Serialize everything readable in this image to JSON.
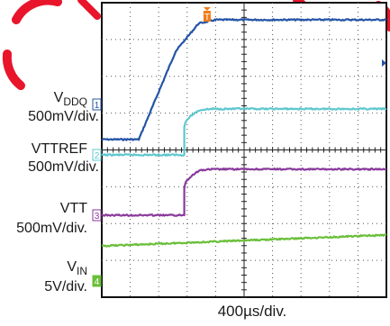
{
  "colors": {
    "ch1": "#2554a6",
    "ch2": "#5fc7cf",
    "ch3": "#8a3a9c",
    "ch4": "#6abf3a",
    "trigger": "#f07c1a",
    "grid": "#555555",
    "frame": "#111111"
  },
  "chart_data": {
    "type": "line",
    "timebase": "400µs/div.",
    "trigger_marker": "T",
    "channels": [
      {
        "id": "1",
        "name_main": "V",
        "name_sub": "DDQ",
        "scale": "500mV/div.",
        "color": "#2554a6",
        "x_div": [
          0,
          1.3,
          2.6,
          3.4,
          4.0,
          10
        ],
        "y_div": [
          -0.95,
          -0.95,
          1.45,
          2.2,
          2.3,
          2.3
        ]
      },
      {
        "id": "2",
        "name_main": "VTTREF",
        "name_sub": "",
        "scale": "500mV/div.",
        "color": "#5fc7cf",
        "x_div": [
          0,
          2.9,
          2.9,
          3.4,
          3.9,
          10
        ],
        "y_div": [
          0,
          0,
          0.75,
          1.2,
          1.25,
          1.25
        ]
      },
      {
        "id": "3",
        "name_main": "VTT",
        "name_sub": "",
        "scale": "500mV/div.",
        "color": "#8a3a9c",
        "x_div": [
          0,
          2.9,
          2.9,
          3.4,
          3.9,
          10
        ],
        "y_div": [
          0,
          0,
          0.75,
          1.2,
          1.25,
          1.25
        ]
      },
      {
        "id": "4",
        "name_main": "V",
        "name_sub": "IN",
        "scale": "5V/div.",
        "color": "#6abf3a",
        "x_div": [
          0,
          10
        ],
        "y_div": [
          0.95,
          1.25
        ]
      }
    ]
  }
}
